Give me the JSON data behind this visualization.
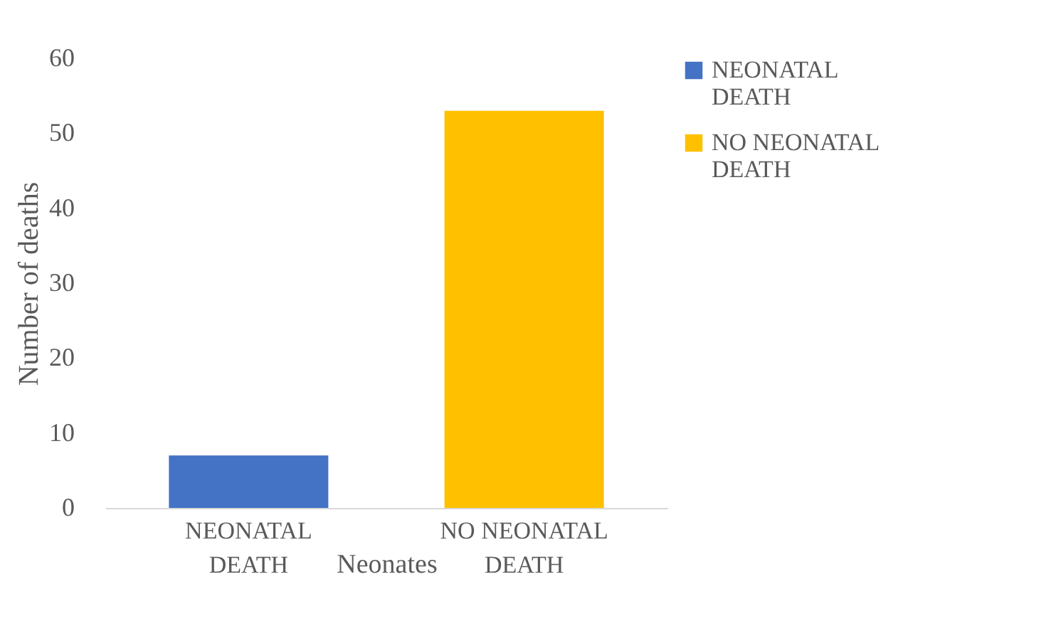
{
  "chart_data": {
    "type": "bar",
    "categories": [
      "NEONATAL DEATH",
      "NO NEONATAL DEATH"
    ],
    "series": [
      {
        "name": "NEONATAL DEATH",
        "color": "#4472c4",
        "values": [
          7,
          null
        ]
      },
      {
        "name": "NO NEONATAL DEATH",
        "color": "#ffc000",
        "values": [
          null,
          53
        ]
      }
    ],
    "xlabel": "Neonates",
    "ylabel": "Number of deaths",
    "ylim": [
      0,
      60
    ],
    "yticks": [
      0,
      10,
      20,
      30,
      40,
      50,
      60
    ],
    "grid": false,
    "legend": "right"
  }
}
